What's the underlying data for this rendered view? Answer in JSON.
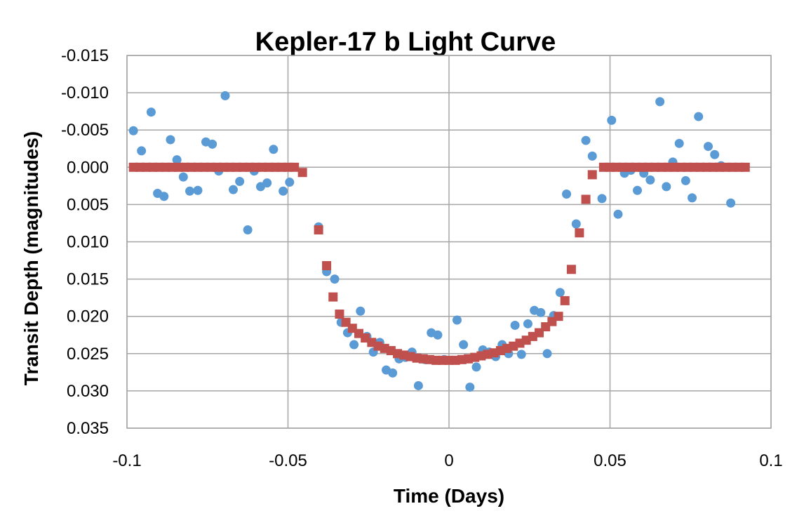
{
  "chart_data": {
    "type": "scatter",
    "title": "Kepler-17 b Light Curve",
    "xlabel": "Time (Days)",
    "ylabel": "Transit Depth (magnitudes)",
    "xlim": [
      -0.1,
      0.1
    ],
    "ylim": [
      -0.015,
      0.035
    ],
    "y_reversed": true,
    "grid": true,
    "legend": "none",
    "x_ticks": [
      "-0.1",
      "-0.05",
      "0",
      "0.05",
      "0.1"
    ],
    "x_tick_values": [
      -0.1,
      -0.05,
      0,
      0.05,
      0.1
    ],
    "y_ticks": [
      "-0.015",
      "-0.010",
      "-0.005",
      "0.000",
      "0.005",
      "0.010",
      "0.015",
      "0.020",
      "0.025",
      "0.030",
      "0.035"
    ],
    "y_tick_values": [
      -0.015,
      -0.01,
      -0.005,
      0,
      0.005,
      0.01,
      0.015,
      0.02,
      0.025,
      0.03,
      0.035
    ],
    "series": [
      {
        "marker": "circle",
        "color": "#5b9bd5",
        "points": [
          [
            -0.098,
            -0.0049
          ],
          [
            -0.0955,
            -0.0022
          ],
          [
            -0.0925,
            -0.0074
          ],
          [
            -0.0905,
            0.0035
          ],
          [
            -0.0885,
            0.0039
          ],
          [
            -0.0865,
            -0.0037
          ],
          [
            -0.0845,
            -0.001
          ],
          [
            -0.0825,
            0.0013
          ],
          [
            -0.0805,
            0.0032
          ],
          [
            -0.078,
            0.0031
          ],
          [
            -0.0755,
            -0.0034
          ],
          [
            -0.0735,
            -0.0031
          ],
          [
            -0.0715,
            0.0005
          ],
          [
            -0.0695,
            -0.0096
          ],
          [
            -0.067,
            0.003
          ],
          [
            -0.065,
            0.0019
          ],
          [
            -0.0625,
            0.0084
          ],
          [
            -0.0605,
            0.0005
          ],
          [
            -0.0585,
            0.0026
          ],
          [
            -0.0565,
            0.0021
          ],
          [
            -0.0545,
            -0.0024
          ],
          [
            -0.0515,
            0.0032
          ],
          [
            -0.0495,
            0.002
          ],
          [
            -0.0405,
            0.008
          ],
          [
            -0.038,
            0.014
          ],
          [
            -0.0355,
            0.015
          ],
          [
            -0.0335,
            0.0208
          ],
          [
            -0.0315,
            0.0222
          ],
          [
            -0.0295,
            0.0238
          ],
          [
            -0.0275,
            0.0193
          ],
          [
            -0.0255,
            0.0227
          ],
          [
            -0.0235,
            0.0248
          ],
          [
            -0.0215,
            0.0235
          ],
          [
            -0.0195,
            0.0272
          ],
          [
            -0.0175,
            0.0276
          ],
          [
            -0.0155,
            0.0257
          ],
          [
            -0.0135,
            0.0255
          ],
          [
            -0.0115,
            0.0248
          ],
          [
            -0.0095,
            0.0293
          ],
          [
            -0.0075,
            0.0258
          ],
          [
            -0.0055,
            0.0222
          ],
          [
            -0.0035,
            0.0225
          ],
          [
            -0.0015,
            0.0258
          ],
          [
            0.0025,
            0.0205
          ],
          [
            0.0045,
            0.0238
          ],
          [
            0.0065,
            0.0295
          ],
          [
            0.0085,
            0.0268
          ],
          [
            0.0105,
            0.0245
          ],
          [
            0.0125,
            0.0248
          ],
          [
            0.0145,
            0.0254
          ],
          [
            0.0165,
            0.0238
          ],
          [
            0.0185,
            0.025
          ],
          [
            0.0205,
            0.0212
          ],
          [
            0.0225,
            0.0251
          ],
          [
            0.0245,
            0.021
          ],
          [
            0.0265,
            0.0192
          ],
          [
            0.0285,
            0.0195
          ],
          [
            0.0305,
            0.025
          ],
          [
            0.0325,
            0.0199
          ],
          [
            0.0345,
            0.0168
          ],
          [
            0.0365,
            0.0036
          ],
          [
            0.0395,
            0.0076
          ],
          [
            0.0425,
            -0.0036
          ],
          [
            0.0445,
            -0.0015
          ],
          [
            0.0475,
            0.0042
          ],
          [
            0.0505,
            -0.0063
          ],
          [
            0.0525,
            0.0063
          ],
          [
            0.0545,
            0.0008
          ],
          [
            0.0565,
            0.0004
          ],
          [
            0.0585,
            0.0031
          ],
          [
            0.0605,
            0.0008
          ],
          [
            0.0625,
            0.0017
          ],
          [
            0.0655,
            -0.0088
          ],
          [
            0.0675,
            0.0026
          ],
          [
            0.0695,
            -0.0007
          ],
          [
            0.0715,
            -0.0032
          ],
          [
            0.0735,
            0.0018
          ],
          [
            0.0755,
            0.0041
          ],
          [
            0.0775,
            -0.0068
          ],
          [
            0.0805,
            -0.0028
          ],
          [
            0.0825,
            -0.0017
          ],
          [
            0.0845,
            -0.0002
          ],
          [
            0.0875,
            0.0048
          ]
        ]
      },
      {
        "marker": "square",
        "color": "#c0504d",
        "points": [
          [
            -0.098,
            0
          ],
          [
            -0.096,
            0
          ],
          [
            -0.094,
            0
          ],
          [
            -0.092,
            0
          ],
          [
            -0.09,
            0
          ],
          [
            -0.088,
            0
          ],
          [
            -0.086,
            0
          ],
          [
            -0.084,
            0
          ],
          [
            -0.082,
            0
          ],
          [
            -0.08,
            0
          ],
          [
            -0.078,
            0
          ],
          [
            -0.076,
            0
          ],
          [
            -0.074,
            0
          ],
          [
            -0.072,
            0
          ],
          [
            -0.07,
            0
          ],
          [
            -0.068,
            0
          ],
          [
            -0.066,
            0
          ],
          [
            -0.064,
            0
          ],
          [
            -0.062,
            0
          ],
          [
            -0.06,
            0
          ],
          [
            -0.058,
            0
          ],
          [
            -0.056,
            0
          ],
          [
            -0.054,
            0
          ],
          [
            -0.052,
            0
          ],
          [
            -0.05,
            0
          ],
          [
            -0.048,
            0
          ],
          [
            -0.0455,
            0.0007
          ],
          [
            -0.0405,
            0.0084
          ],
          [
            -0.038,
            0.0132
          ],
          [
            -0.036,
            0.0174
          ],
          [
            -0.034,
            0.0197
          ],
          [
            -0.032,
            0.0208
          ],
          [
            -0.03,
            0.0216
          ],
          [
            -0.028,
            0.0223
          ],
          [
            -0.026,
            0.0229
          ],
          [
            -0.024,
            0.0235
          ],
          [
            -0.022,
            0.024
          ],
          [
            -0.02,
            0.0243
          ],
          [
            -0.018,
            0.0246
          ],
          [
            -0.016,
            0.025
          ],
          [
            -0.014,
            0.0252
          ],
          [
            -0.012,
            0.0254
          ],
          [
            -0.01,
            0.0256
          ],
          [
            -0.008,
            0.0257
          ],
          [
            -0.006,
            0.0258
          ],
          [
            -0.004,
            0.0259
          ],
          [
            -0.002,
            0.0259
          ],
          [
            0.0,
            0.0259
          ],
          [
            0.002,
            0.0259
          ],
          [
            0.004,
            0.0258
          ],
          [
            0.006,
            0.0257
          ],
          [
            0.008,
            0.0255
          ],
          [
            0.01,
            0.0253
          ],
          [
            0.012,
            0.0251
          ],
          [
            0.014,
            0.0249
          ],
          [
            0.016,
            0.0246
          ],
          [
            0.018,
            0.0243
          ],
          [
            0.02,
            0.024
          ],
          [
            0.022,
            0.0236
          ],
          [
            0.024,
            0.0232
          ],
          [
            0.026,
            0.0227
          ],
          [
            0.028,
            0.0222
          ],
          [
            0.03,
            0.0214
          ],
          [
            0.032,
            0.0207
          ],
          [
            0.034,
            0.02
          ],
          [
            0.036,
            0.0179
          ],
          [
            0.038,
            0.0137
          ],
          [
            0.0405,
            0.0088
          ],
          [
            0.0425,
            0.0043
          ],
          [
            0.0445,
            0.001
          ],
          [
            0.048,
            0
          ],
          [
            0.05,
            0
          ],
          [
            0.052,
            0
          ],
          [
            0.054,
            0
          ],
          [
            0.056,
            0
          ],
          [
            0.058,
            0
          ],
          [
            0.06,
            0
          ],
          [
            0.062,
            0
          ],
          [
            0.064,
            0
          ],
          [
            0.066,
            0
          ],
          [
            0.068,
            0
          ],
          [
            0.07,
            0
          ],
          [
            0.072,
            0
          ],
          [
            0.074,
            0
          ],
          [
            0.076,
            0
          ],
          [
            0.078,
            0
          ],
          [
            0.08,
            0
          ],
          [
            0.082,
            0
          ],
          [
            0.084,
            0
          ],
          [
            0.086,
            0
          ],
          [
            0.088,
            0
          ],
          [
            0.09,
            0
          ],
          [
            0.092,
            0
          ]
        ]
      }
    ]
  }
}
